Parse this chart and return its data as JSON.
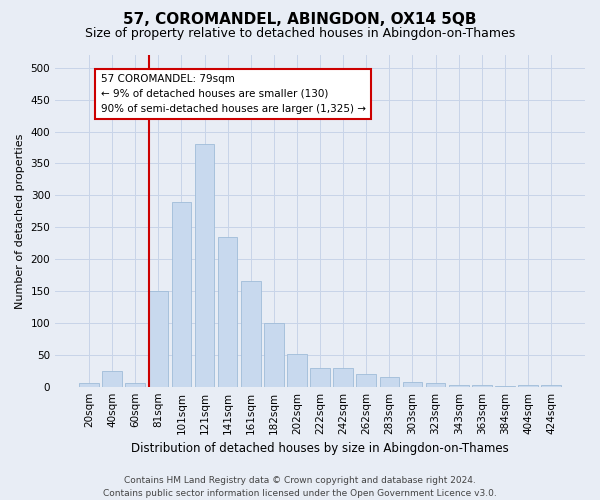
{
  "title": "57, COROMANDEL, ABINGDON, OX14 5QB",
  "subtitle": "Size of property relative to detached houses in Abingdon-on-Thames",
  "xlabel": "Distribution of detached houses by size in Abingdon-on-Thames",
  "ylabel": "Number of detached properties",
  "categories": [
    "20sqm",
    "40sqm",
    "60sqm",
    "81sqm",
    "101sqm",
    "121sqm",
    "141sqm",
    "161sqm",
    "182sqm",
    "202sqm",
    "222sqm",
    "242sqm",
    "262sqm",
    "283sqm",
    "303sqm",
    "323sqm",
    "343sqm",
    "363sqm",
    "384sqm",
    "404sqm",
    "424sqm"
  ],
  "values": [
    5,
    25,
    5,
    150,
    290,
    380,
    235,
    165,
    100,
    52,
    30,
    30,
    20,
    15,
    8,
    5,
    3,
    2,
    1,
    2,
    2
  ],
  "bar_color": "#c8d9ee",
  "bar_edgecolor": "#a0bcd8",
  "bar_linewidth": 0.6,
  "redline_index": 3,
  "redline_label": "57 COROMANDEL: 79sqm",
  "annotation_line1": "← 9% of detached houses are smaller (130)",
  "annotation_line2": "90% of semi-detached houses are larger (1,325) →",
  "annotation_box_facecolor": "#ffffff",
  "annotation_box_edgecolor": "#cc0000",
  "ylim": [
    0,
    520
  ],
  "yticks": [
    0,
    50,
    100,
    150,
    200,
    250,
    300,
    350,
    400,
    450,
    500
  ],
  "grid_color": "#c8d4e8",
  "background_color": "#e8edf5",
  "footer_line1": "Contains HM Land Registry data © Crown copyright and database right 2024.",
  "footer_line2": "Contains public sector information licensed under the Open Government Licence v3.0.",
  "title_fontsize": 11,
  "subtitle_fontsize": 9,
  "ylabel_fontsize": 8,
  "xlabel_fontsize": 8.5,
  "tick_fontsize": 7.5,
  "annotation_fontsize": 7.5,
  "footer_fontsize": 6.5
}
